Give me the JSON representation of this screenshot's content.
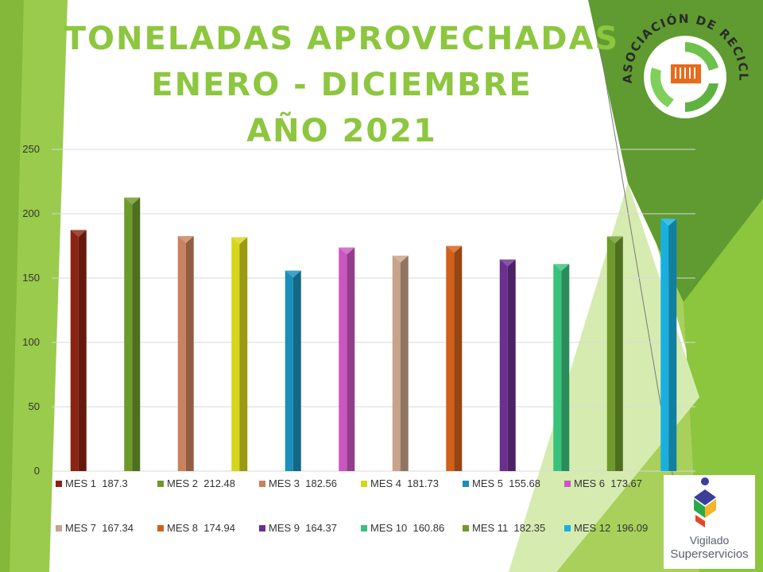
{
  "title": {
    "line1": "TONELADAS APROVECHADAS",
    "line2": "ENERO - DICIEMBRE",
    "line3": "AÑO 2021"
  },
  "logo": {
    "text": "ASOCIACIÓN DE RECICLADORES DEL META",
    "icon": "recycle-arrows-icon"
  },
  "vigilado": {
    "line1": "Vigilado",
    "line2": "Superservicios"
  },
  "colors": {
    "title": "#8dc63f",
    "bg_green_light": "#a8d05a",
    "bg_green_dark": "#5f9b30"
  },
  "chart_data": {
    "type": "bar",
    "categories": [
      "MES 1",
      "MES 2",
      "MES 3",
      "MES 4",
      "MES 5",
      "MES 6",
      "MES 7",
      "MES 8",
      "MES 9",
      "MES 10",
      "MES 11",
      "MES 12"
    ],
    "values": [
      187.3,
      212.48,
      182.56,
      181.73,
      155.68,
      173.67,
      167.34,
      174.94,
      164.37,
      160.86,
      182.35,
      196.09
    ],
    "legend_labels": [
      "MES 1  187.3",
      "MES 2  212.48",
      "MES 3  182.56",
      "MES 4  181.73",
      "MES 5  155.68",
      "MES 6  173.67",
      "MES 7  167.34",
      "MES 8  174.94",
      "MES 9  164.37",
      "MES 10  160.86",
      "MES 11  182.35",
      "MES 12  196.09"
    ],
    "colors": [
      "#8b2412",
      "#6d9a2a",
      "#c9825e",
      "#d6d61a",
      "#1a8fbb",
      "#cc55c4",
      "#c8a28a",
      "#d0601a",
      "#6a2f8f",
      "#39c27c",
      "#6d9a2a",
      "#19b0e0"
    ],
    "yticks": [
      "0",
      "50",
      "100",
      "150",
      "200",
      "250"
    ],
    "ylim": [
      0,
      250
    ],
    "grid": true,
    "legend_position": "bottom"
  }
}
